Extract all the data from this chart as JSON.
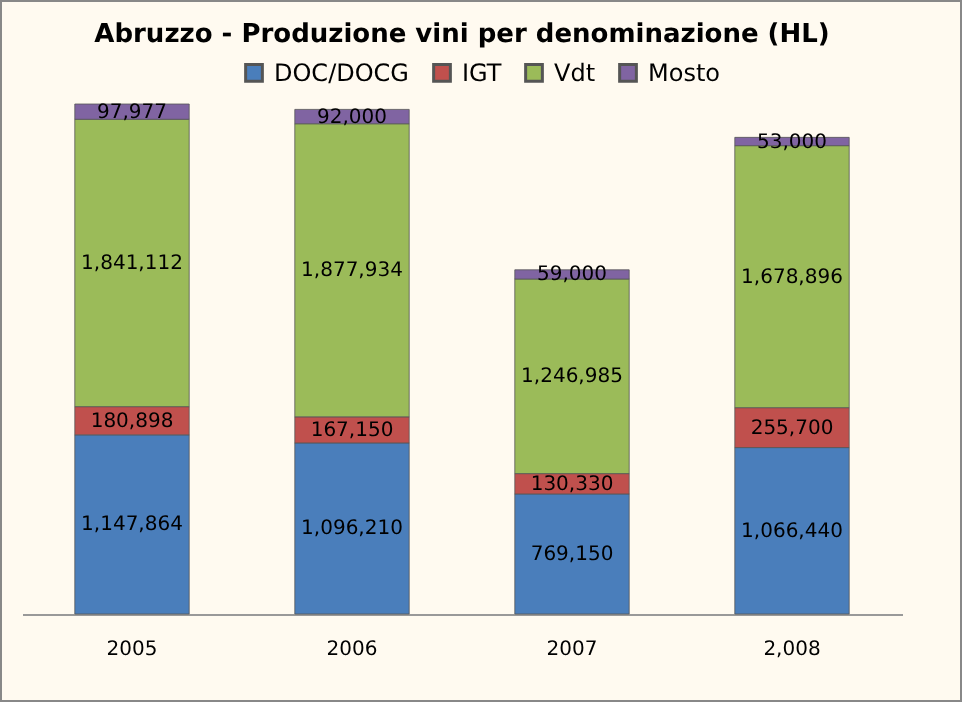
{
  "chart_data": {
    "type": "bar",
    "title": "Abruzzo - Produzione vini per denominazione (HL)",
    "stacked": true,
    "legend": "top",
    "grid": false,
    "categories": [
      "2005",
      "2006",
      "2007",
      "2,008"
    ],
    "series": [
      {
        "name": "DOC/DOCG",
        "color": "#4a7ebb",
        "values": [
          1147864,
          1096210,
          769150,
          1066440
        ],
        "value_labels": [
          "1,147,864",
          "1,096,210",
          "769,150",
          "1,066,440"
        ]
      },
      {
        "name": "IGT",
        "color": "#c0504d",
        "values": [
          180898,
          167150,
          130330,
          255700
        ],
        "value_labels": [
          "180,898",
          "167,150",
          "130,330",
          "255,700"
        ]
      },
      {
        "name": "Vdt",
        "color": "#9bbb59",
        "values": [
          1841112,
          1877934,
          1246985,
          1678896
        ],
        "value_labels": [
          "1,841,112",
          "1,877,934",
          "1,246,985",
          "1,678,896"
        ]
      },
      {
        "name": "Mosto",
        "color": "#8064a2",
        "values": [
          97977,
          92000,
          59000,
          53000
        ],
        "value_labels": [
          "97,977",
          "92,000",
          "59,000",
          "53,000"
        ]
      }
    ]
  }
}
